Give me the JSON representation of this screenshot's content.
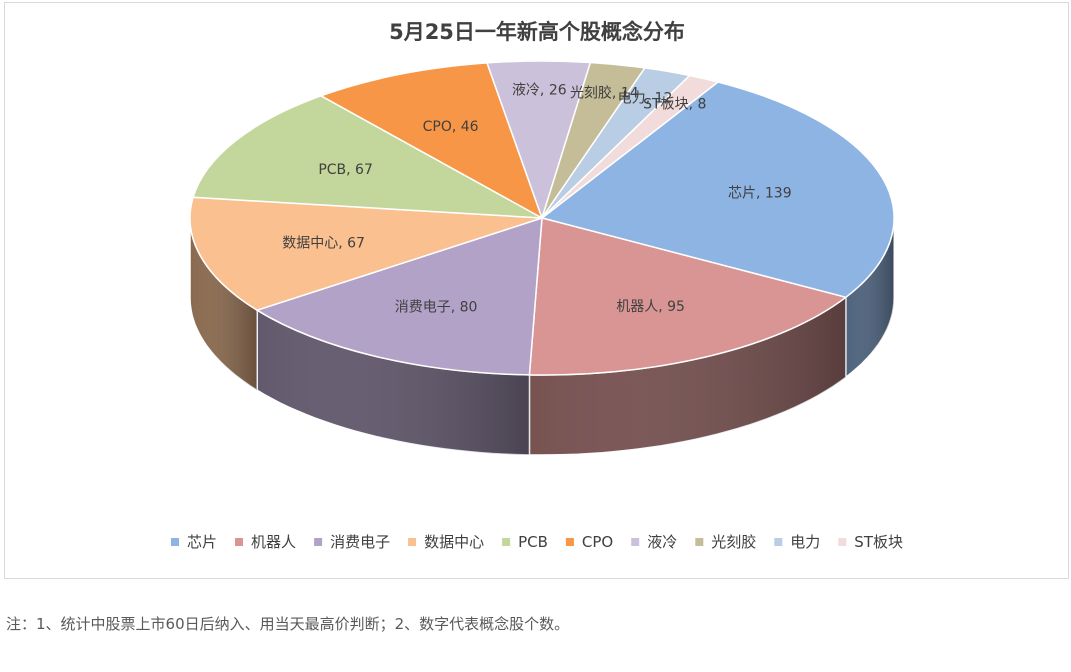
{
  "chart_data": {
    "type": "pie",
    "title": "5月25日一年新高个股概念分布",
    "slices": [
      {
        "label": "芯片",
        "value": 139,
        "color": "#8EB4E3"
      },
      {
        "label": "机器人",
        "value": 95,
        "color": "#D99594"
      },
      {
        "label": "消费电子",
        "value": 80,
        "color": "#B3A2C7"
      },
      {
        "label": "数据中心",
        "value": 67,
        "color": "#FAC090"
      },
      {
        "label": "PCB",
        "value": 67,
        "color": "#C3D69B"
      },
      {
        "label": "CPO",
        "value": 46,
        "color": "#F79646"
      },
      {
        "label": "液冷",
        "value": 26,
        "color": "#CCC1DA"
      },
      {
        "label": "光刻胶",
        "value": 14,
        "color": "#C4BD97"
      },
      {
        "label": "电力",
        "value": 12,
        "color": "#B9CDE5"
      },
      {
        "label": "ST板块",
        "value": 8,
        "color": "#F2DCDB"
      }
    ],
    "data_label_separator": ", ",
    "legend_placement": "bottom",
    "style": "3d-tilted"
  },
  "footnote": "注：1、统计中股票上市60日后纳入、用当天最高价判断；2、数字代表概念股个数。"
}
